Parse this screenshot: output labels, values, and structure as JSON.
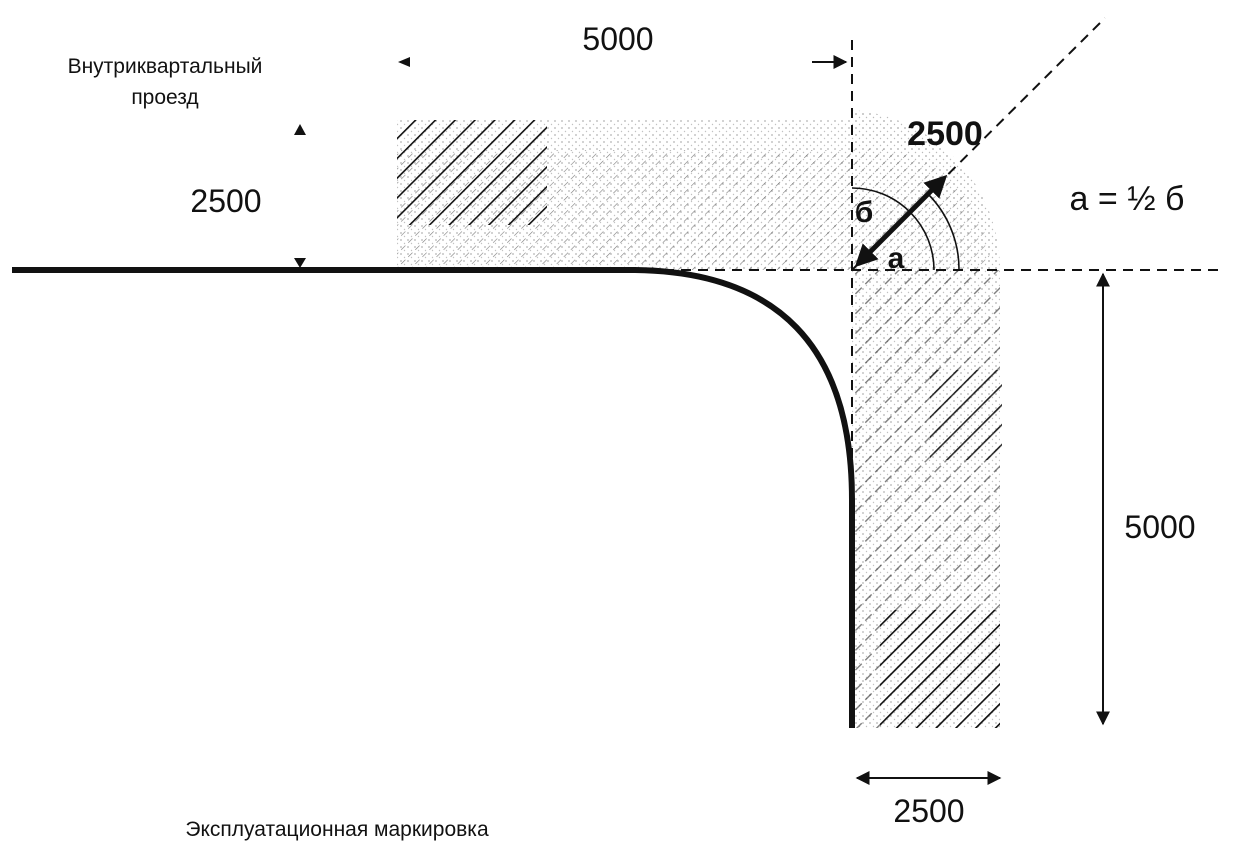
{
  "labels": {
    "inner_drive_line1": "Внутриквартальный",
    "inner_drive_line2": "проезд",
    "top_dimension": "5000",
    "left_dimension": "2500",
    "diagonal_dimension": "2500",
    "formula": "a = ½ б",
    "angle_b": "б",
    "angle_a": "a",
    "right_dimension": "5000",
    "bottom_dimension": "2500",
    "operational_marking": "Эксплуатационная маркировка"
  },
  "colors": {
    "ink": "#111111",
    "hatch": "#333333",
    "background": "#ffffff"
  }
}
